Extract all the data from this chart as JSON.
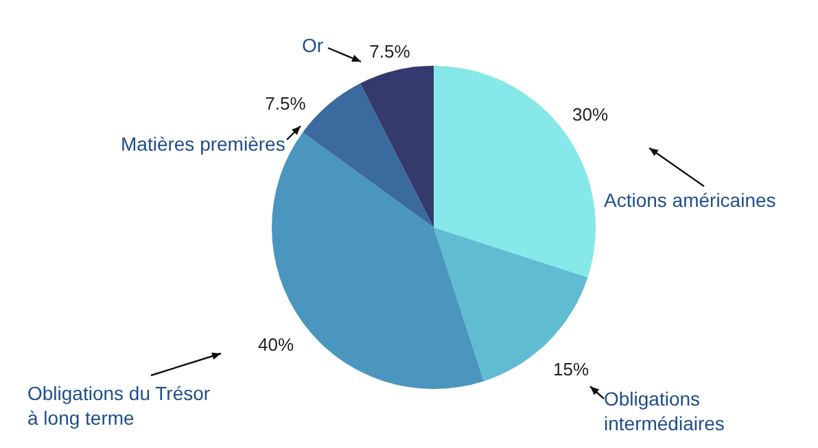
{
  "chart_data": {
    "type": "pie",
    "categories": [
      "Actions américaines",
      "Obligations intermédiaires",
      "Obligations du Trésor à long terme",
      "Matières premières",
      "Or"
    ],
    "values": [
      30,
      15,
      40,
      7.5,
      7.5
    ],
    "colors": [
      "#86e8e8",
      "#5fbcd3",
      "#4a96bf",
      "#3a6a9e",
      "#343a6e"
    ],
    "value_labels": [
      "30%",
      "15%",
      "40%",
      "7.5%",
      "7.5%"
    ]
  }
}
